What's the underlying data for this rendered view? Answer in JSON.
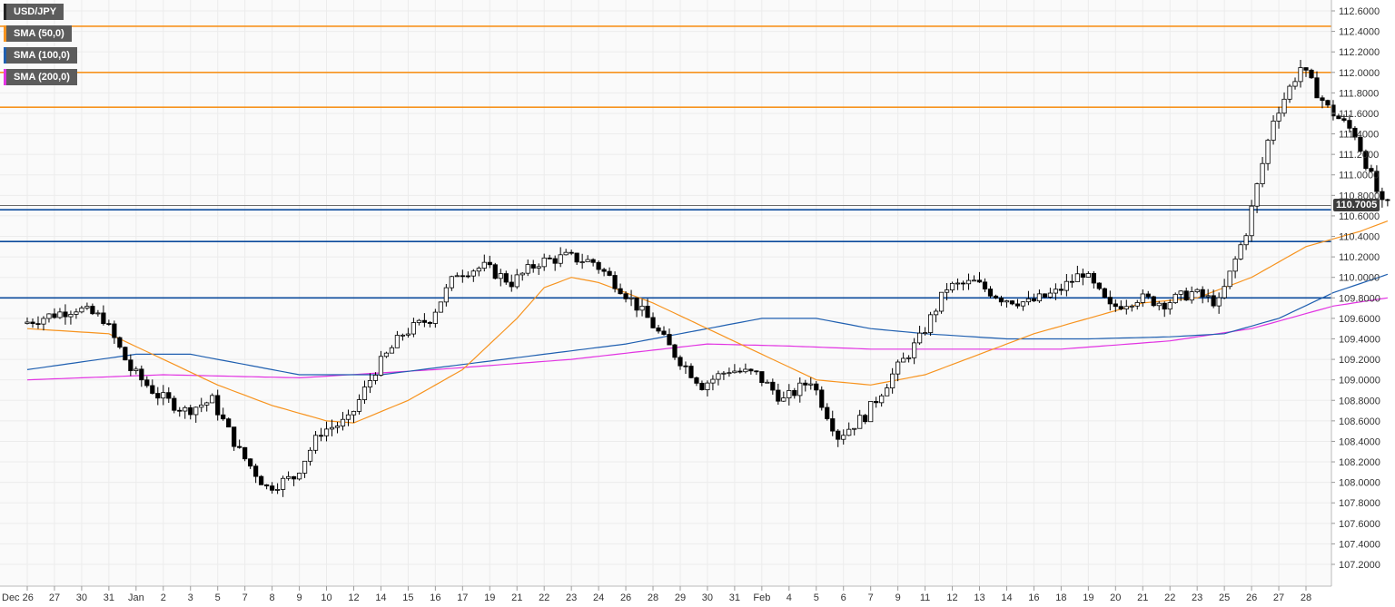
{
  "legend": [
    {
      "label": "USD/JPY",
      "color": "#222222"
    },
    {
      "label": "SMA (50,0)",
      "color": "#f7931e"
    },
    {
      "label": "SMA (100,0)",
      "color": "#1f5fb0"
    },
    {
      "label": "SMA (200,0)",
      "color": "#e233e2"
    }
  ],
  "current_price_label": "110.7005",
  "colors": {
    "up": "#ffffff",
    "down": "#000000",
    "sma50": "#f7931e",
    "sma100": "#1f5fb0",
    "sma200": "#e233e2",
    "resistance": "#f7931e",
    "support": "#0b4a9c",
    "grid": "#ececec"
  },
  "chart_data": {
    "type": "candlestick",
    "symbol": "USD/JPY",
    "ylim": [
      107.2,
      112.6
    ],
    "y_ticks": [
      "112.6000",
      "112.4000",
      "112.2000",
      "112.0000",
      "111.8000",
      "111.6000",
      "111.4000",
      "111.2000",
      "111.0000",
      "110.8000",
      "110.6000",
      "110.4000",
      "110.2000",
      "110.0000",
      "109.8000",
      "109.6000",
      "109.4000",
      "109.2000",
      "109.0000",
      "108.8000",
      "108.6000",
      "108.4000",
      "108.2000",
      "108.0000",
      "107.8000",
      "107.6000",
      "107.4000",
      "107.2000"
    ],
    "x_labels": [
      "Dec 26",
      "27",
      "30",
      "31",
      "Jan",
      "2",
      "3",
      "5",
      "7",
      "8",
      "9",
      "10",
      "12",
      "14",
      "15",
      "16",
      "17",
      "19",
      "21",
      "22",
      "23",
      "24",
      "26",
      "28",
      "29",
      "30",
      "31",
      "Feb",
      "4",
      "5",
      "6",
      "7",
      "9",
      "11",
      "12",
      "13",
      "14",
      "16",
      "18",
      "19",
      "20",
      "21",
      "22",
      "23",
      "25",
      "26",
      "27",
      "28"
    ],
    "current_price": 110.7005,
    "resistance_levels": [
      112.45,
      112.0,
      111.66
    ],
    "support_levels": [
      110.66,
      110.35,
      109.8
    ],
    "trend_path": [
      [
        0,
        109.55
      ],
      [
        2,
        109.7
      ],
      [
        3,
        109.6
      ],
      [
        4,
        109.1
      ],
      [
        5,
        108.85
      ],
      [
        6,
        108.7
      ],
      [
        7,
        108.8
      ],
      [
        8,
        108.3
      ],
      [
        9,
        107.95
      ],
      [
        10,
        108.05
      ],
      [
        11,
        108.5
      ],
      [
        12,
        108.6
      ],
      [
        13,
        109.1
      ],
      [
        14,
        109.45
      ],
      [
        15,
        109.6
      ],
      [
        16,
        110.05
      ],
      [
        17,
        110.1
      ],
      [
        18,
        109.95
      ],
      [
        19,
        110.15
      ],
      [
        20,
        110.2
      ],
      [
        21,
        110.15
      ],
      [
        22,
        109.9
      ],
      [
        23,
        109.6
      ],
      [
        24,
        109.25
      ],
      [
        25,
        108.95
      ],
      [
        26,
        109.1
      ],
      [
        27,
        109.05
      ],
      [
        28,
        108.8
      ],
      [
        29,
        109.0
      ],
      [
        30,
        108.45
      ],
      [
        31,
        108.65
      ],
      [
        32,
        109.05
      ],
      [
        33,
        109.4
      ],
      [
        34,
        109.9
      ],
      [
        35,
        109.95
      ],
      [
        36,
        109.8
      ],
      [
        37,
        109.75
      ],
      [
        38,
        109.85
      ],
      [
        39,
        110.05
      ],
      [
        40,
        109.7
      ],
      [
        41,
        109.8
      ],
      [
        42,
        109.75
      ],
      [
        43,
        109.85
      ],
      [
        44,
        109.75
      ],
      [
        45,
        110.45
      ],
      [
        46,
        111.55
      ],
      [
        47,
        112.05
      ],
      [
        48,
        111.65
      ],
      [
        49,
        111.4
      ],
      [
        50,
        110.7
      ]
    ],
    "sma50": [
      [
        0,
        109.5
      ],
      [
        3,
        109.45
      ],
      [
        5,
        109.2
      ],
      [
        7,
        108.95
      ],
      [
        9,
        108.75
      ],
      [
        11,
        108.6
      ],
      [
        12,
        108.58
      ],
      [
        14,
        108.8
      ],
      [
        16,
        109.1
      ],
      [
        18,
        109.6
      ],
      [
        19,
        109.9
      ],
      [
        20,
        110.0
      ],
      [
        21,
        109.95
      ],
      [
        23,
        109.75
      ],
      [
        25,
        109.5
      ],
      [
        27,
        109.25
      ],
      [
        29,
        109.0
      ],
      [
        31,
        108.95
      ],
      [
        33,
        109.05
      ],
      [
        35,
        109.25
      ],
      [
        37,
        109.45
      ],
      [
        39,
        109.6
      ],
      [
        41,
        109.75
      ],
      [
        43,
        109.8
      ],
      [
        45,
        110.0
      ],
      [
        47,
        110.3
      ],
      [
        49,
        110.45
      ],
      [
        50,
        110.55
      ]
    ],
    "sma100": [
      [
        0,
        109.1
      ],
      [
        4,
        109.25
      ],
      [
        6,
        109.25
      ],
      [
        8,
        109.15
      ],
      [
        10,
        109.05
      ],
      [
        13,
        109.05
      ],
      [
        16,
        109.15
      ],
      [
        19,
        109.25
      ],
      [
        22,
        109.35
      ],
      [
        25,
        109.5
      ],
      [
        27,
        109.6
      ],
      [
        29,
        109.6
      ],
      [
        31,
        109.5
      ],
      [
        33,
        109.45
      ],
      [
        36,
        109.4
      ],
      [
        39,
        109.4
      ],
      [
        42,
        109.42
      ],
      [
        44,
        109.45
      ],
      [
        46,
        109.6
      ],
      [
        48,
        109.85
      ],
      [
        50,
        110.03
      ]
    ],
    "sma200": [
      [
        0,
        109.0
      ],
      [
        5,
        109.05
      ],
      [
        10,
        109.02
      ],
      [
        15,
        109.1
      ],
      [
        20,
        109.2
      ],
      [
        25,
        109.35
      ],
      [
        28,
        109.33
      ],
      [
        31,
        109.3
      ],
      [
        34,
        109.3
      ],
      [
        38,
        109.3
      ],
      [
        42,
        109.38
      ],
      [
        45,
        109.5
      ],
      [
        48,
        109.72
      ],
      [
        50,
        109.8
      ]
    ]
  }
}
